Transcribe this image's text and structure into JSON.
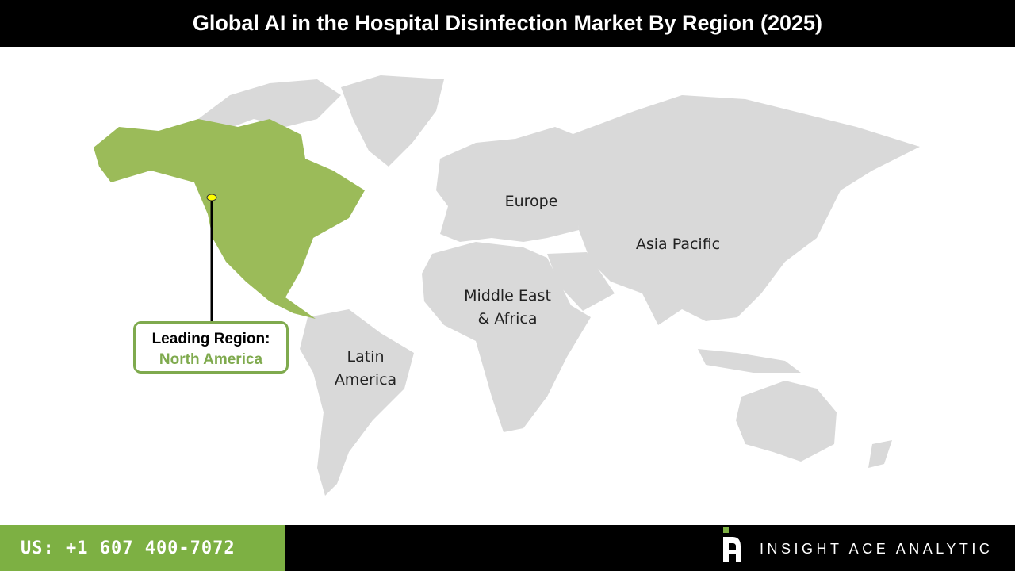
{
  "title": "Global AI in the Hospital Disinfection Market By Region (2025)",
  "map": {
    "regions": [
      {
        "name": "North America",
        "highlighted": true,
        "color": "#9bbb59"
      },
      {
        "name": "Europe",
        "label": "Europe",
        "color": "#d9d9d9"
      },
      {
        "name": "Asia Pacific",
        "label": "Asia Pacific",
        "color": "#d9d9d9"
      },
      {
        "name": "Middle East & Africa",
        "label_line1": "Middle East",
        "label_line2": "& Africa",
        "color": "#d9d9d9"
      },
      {
        "name": "Latin America",
        "label_line1": "Latin",
        "label_line2": "America",
        "color": "#d9d9d9"
      }
    ],
    "marker_color": "#ffff00"
  },
  "callout": {
    "heading": "Leading Region:",
    "value": "North America",
    "accent": "#7faa4e"
  },
  "footer": {
    "phone": "US: +1 607 400-7072",
    "brand": "INSIGHT ACE ANALYTIC"
  }
}
